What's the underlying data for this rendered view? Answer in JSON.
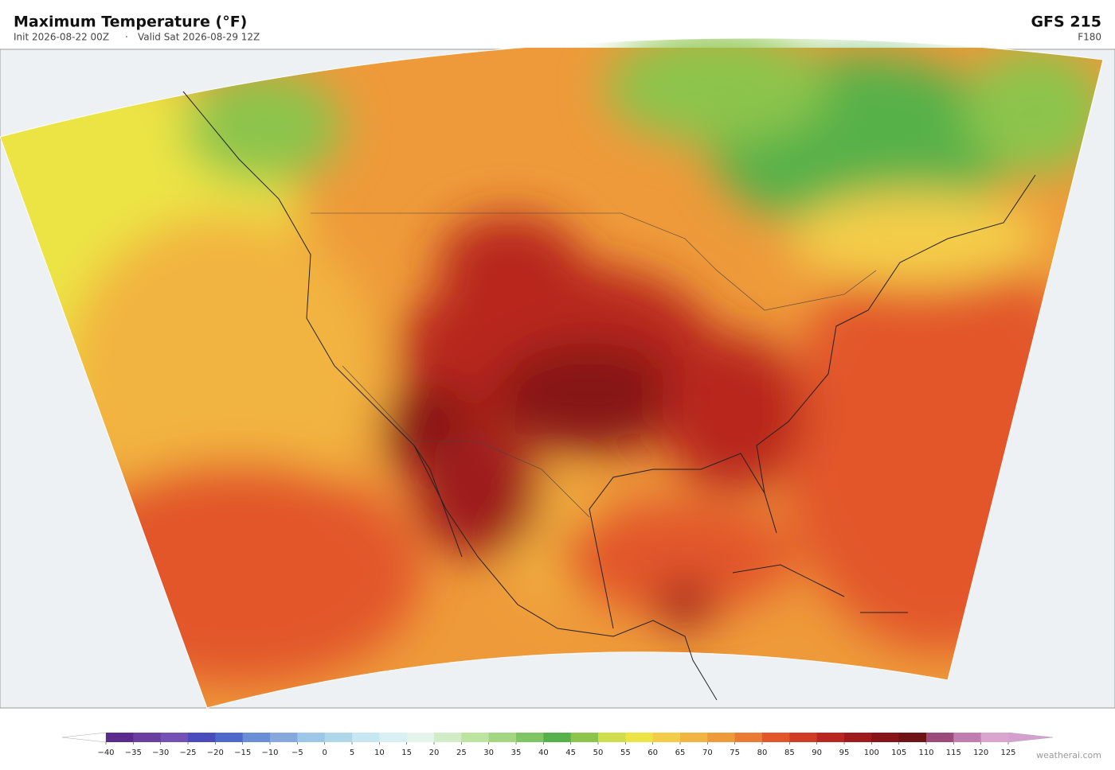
{
  "header": {
    "title": "Maximum Temperature  (°F)",
    "init": "Init 2026-08-22 00Z",
    "separator": "·",
    "valid": "Valid Sat 2026-08-29 12Z",
    "model": "GFS  215",
    "forecast_hour": "F180"
  },
  "colorbar": {
    "labels": [
      "−40",
      "−35",
      "−30",
      "−25",
      "−20",
      "−15",
      "−10",
      "−5",
      "0",
      "5",
      "10",
      "15",
      "20",
      "25",
      "30",
      "35",
      "40",
      "45",
      "50",
      "55",
      "60",
      "65",
      "70",
      "75",
      "80",
      "85",
      "90",
      "95",
      "100",
      "105",
      "110",
      "115",
      "120",
      "125"
    ],
    "colors": [
      "#5a2a8c",
      "#6b3fa0",
      "#7452b5",
      "#4a4bbd",
      "#4f68cc",
      "#6a8ed6",
      "#86a8dc",
      "#9ec6e6",
      "#b0d6ea",
      "#c6e6f2",
      "#d8eff3",
      "#e4f4ea",
      "#d2ecc8",
      "#bde3a0",
      "#a2d682",
      "#7fc564",
      "#56b14a",
      "#8cc44c",
      "#cfdc4c",
      "#ece445",
      "#f4cd48",
      "#f2b441",
      "#ee9a3a",
      "#ea7b34",
      "#e2562a",
      "#cf3d24",
      "#b8261f",
      "#9e1a1c",
      "#861418",
      "#6e1416",
      "#9c4a7c",
      "#c27db0",
      "#d9a5cf"
    ],
    "under_color": "#ffffff",
    "over_color": "#d5a0d0"
  },
  "footer": {
    "credit": "weatherai.com"
  }
}
